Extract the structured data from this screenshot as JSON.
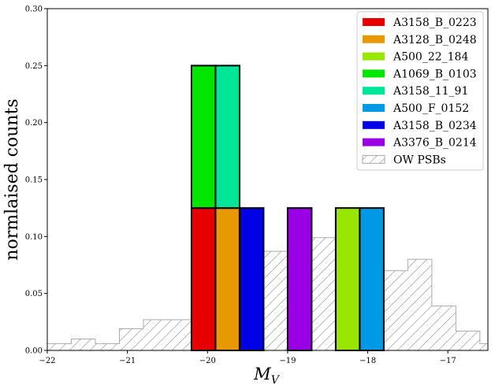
{
  "chart_data": {
    "type": "bar",
    "title": "",
    "xlabel": "M_V",
    "ylabel": "normlaised counts",
    "xlim": [
      -22,
      -16.5
    ],
    "ylim": [
      0,
      0.3
    ],
    "xticks": [
      -22,
      -21,
      -20,
      -19,
      -18,
      -17
    ],
    "xtick_labels": [
      "−22",
      "−21",
      "−20",
      "−19",
      "−18",
      "−17"
    ],
    "yticks": [
      0,
      0.05,
      0.1,
      0.15,
      0.2,
      0.25,
      0.3
    ],
    "ytick_labels": [
      "0.00",
      "0.05",
      "0.10",
      "0.15",
      "0.20",
      "0.25",
      "0.30"
    ],
    "legend_position": "top-right",
    "galaxies": [
      {
        "name": "A3158_B_0223",
        "color": "#e60000",
        "bin": [
          -20.2,
          -19.9
        ],
        "y0": 0,
        "y1": 0.125
      },
      {
        "name": "A3128_B_0248",
        "color": "#e69900",
        "bin": [
          -19.9,
          -19.6
        ],
        "y0": 0,
        "y1": 0.125
      },
      {
        "name": "A500_22_184",
        "color": "#99e600",
        "bin": [
          -18.4,
          -18.1
        ],
        "y0": 0,
        "y1": 0.125
      },
      {
        "name": "A1069_B_0103",
        "color": "#00e600",
        "bin": [
          -20.2,
          -19.9
        ],
        "y0": 0.125,
        "y1": 0.25
      },
      {
        "name": "A3158_11_91",
        "color": "#00e699",
        "bin": [
          -19.9,
          -19.6
        ],
        "y0": 0.125,
        "y1": 0.25
      },
      {
        "name": "A500_F_0152",
        "color": "#0099e6",
        "bin": [
          -18.1,
          -17.8
        ],
        "y0": 0,
        "y1": 0.125
      },
      {
        "name": "A3158_B_0234",
        "color": "#0000e6",
        "bin": [
          -19.6,
          -19.3
        ],
        "y0": 0,
        "y1": 0.125
      },
      {
        "name": "A3376_B_0214",
        "color": "#9900e6",
        "bin": [
          -19.0,
          -18.7
        ],
        "y0": 0,
        "y1": 0.125
      }
    ],
    "ow_psbs": {
      "name": "OW PSBs",
      "bin_edges": [
        -22.0,
        -21.7,
        -21.4,
        -21.1,
        -20.8,
        -20.5,
        -20.2,
        -19.9,
        -19.6,
        -19.3,
        -19.0,
        -18.7,
        -18.4,
        -18.1,
        -17.8,
        -17.5,
        -17.2,
        -16.9,
        -16.6,
        -16.3
      ],
      "values": [
        0.006,
        0.01,
        0.006,
        0.019,
        0.027,
        0.027,
        0.051,
        0.075,
        0.063,
        0.087,
        0.084,
        0.099,
        0.103,
        0.125,
        0.07,
        0.08,
        0.039,
        0.017,
        0.006
      ]
    }
  }
}
